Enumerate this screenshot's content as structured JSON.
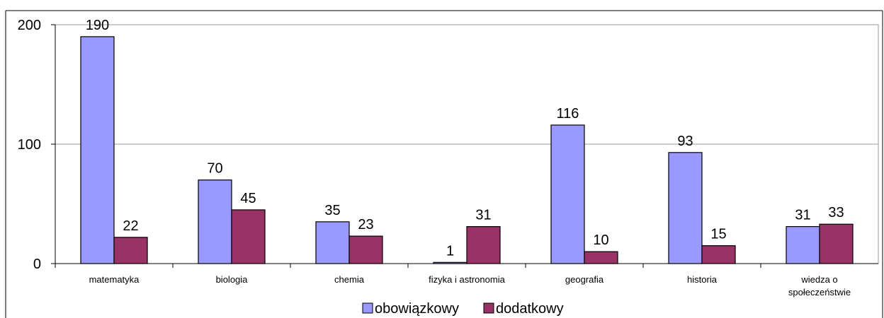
{
  "chart_data": {
    "type": "bar",
    "categories": [
      "matematyka",
      "biologia",
      "chemia",
      "fizyka i astronomia",
      "geografia",
      "historia",
      "wiedza o społeczeństwie"
    ],
    "series": [
      {
        "name": "obowiązkowy",
        "color": "#9999ff",
        "values": [
          190,
          70,
          35,
          1,
          116,
          93,
          31
        ]
      },
      {
        "name": "dodatkowy",
        "color": "#993366",
        "values": [
          22,
          45,
          23,
          31,
          10,
          15,
          33
        ]
      }
    ],
    "ylim": [
      0,
      200
    ],
    "yticks": [
      0,
      100,
      200
    ],
    "grid": true,
    "legend": "bottom"
  }
}
